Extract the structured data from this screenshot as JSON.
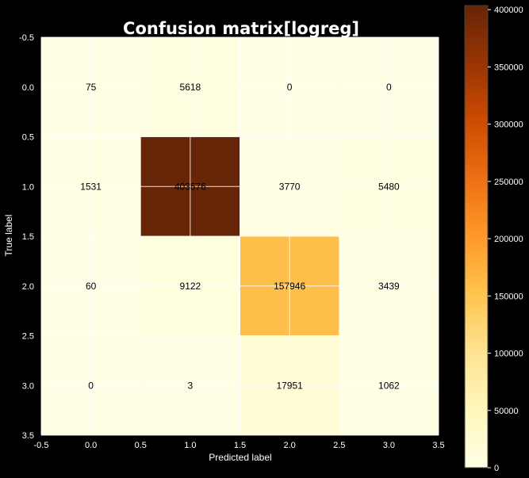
{
  "chart_data": {
    "type": "heatmap",
    "title": "Confusion matrix[logreg]",
    "xlabel": "Predicted label",
    "ylabel": "True label",
    "xlim": [
      -0.5,
      3.5
    ],
    "ylim": [
      3.5,
      -0.5
    ],
    "xticks": [
      "-0.5",
      "0.0",
      "0.5",
      "1.0",
      "1.5",
      "2.0",
      "2.5",
      "3.0",
      "3.5"
    ],
    "yticks": [
      "-0.5",
      "0.0",
      "0.5",
      "1.0",
      "1.5",
      "2.0",
      "2.5",
      "3.0",
      "3.5"
    ],
    "matrix": [
      [
        75,
        5618,
        0,
        0
      ],
      [
        1531,
        403576,
        3770,
        5480
      ],
      [
        60,
        9122,
        157946,
        3439
      ],
      [
        0,
        3,
        17951,
        1062
      ]
    ],
    "colorbar": {
      "min": 0,
      "max": 403576,
      "ticks": [
        "0",
        "50000",
        "100000",
        "150000",
        "200000",
        "250000",
        "300000",
        "350000",
        "400000"
      ],
      "colormap": [
        "#ffffe5",
        "#fff7bc",
        "#fee391",
        "#fec44f",
        "#fe9929",
        "#ec7014",
        "#cc4c02",
        "#993404",
        "#662506"
      ]
    },
    "grid": true,
    "colors": {
      "background": "#000000",
      "text": "#ffffff",
      "grid": "#ffffff",
      "cell_text": "#000000"
    }
  }
}
